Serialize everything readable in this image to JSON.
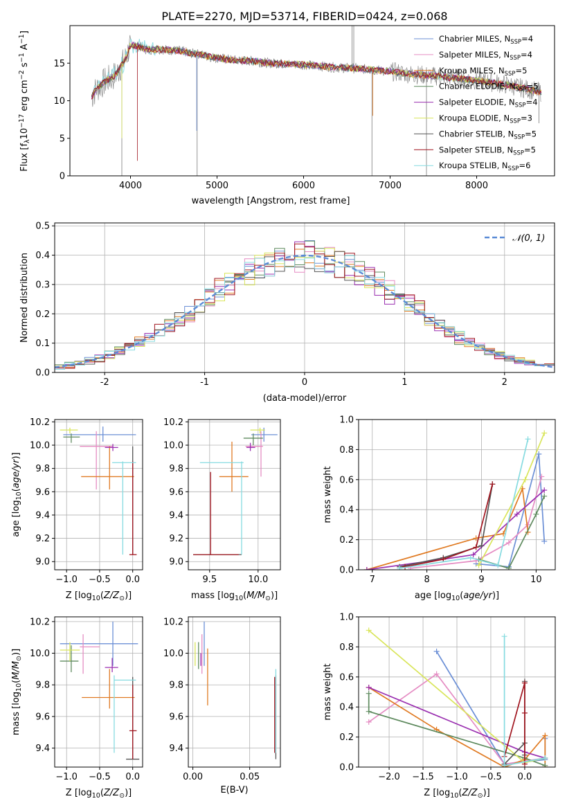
{
  "figure_title": "PLATE=2270, MJD=53714, FIBERID=0424, z=0.068",
  "series_colors": [
    "#6b8fd6",
    "#e58cc3",
    "#e07a22",
    "#5e8a5e",
    "#9a2fb0",
    "#d9e55a",
    "#555555",
    "#a0141e",
    "#86dbe0"
  ],
  "chart_data": [
    {
      "id": "spectrum",
      "type": "line",
      "title": "PLATE=2270, MJD=53714, FIBERID=0424, z=0.068",
      "xlabel": "wavelength [Angstrom, rest frame]",
      "ylabel": "Flux [f$_\\lambda$10$^{-17}$ erg cm$^{-2}$ s$^{-1}$ A$^{-1}$]",
      "ylabel_display": "Flux [fλ10⁻¹⁷ erg cm⁻² s⁻¹ A⁻¹]",
      "xlim": [
        3300,
        8900
      ],
      "ylim": [
        0,
        20
      ],
      "xticks": [
        4000,
        5000,
        6000,
        7000,
        8000
      ],
      "yticks": [
        0,
        5,
        10,
        15
      ],
      "grid": false,
      "legend_position": "top-right",
      "data_wavelength": [
        3550,
        3600,
        3700,
        3800,
        3850,
        3900,
        3950,
        4000,
        4100,
        4200,
        4300,
        4400,
        4500,
        4600,
        4700,
        4800,
        4900,
        5000,
        5200,
        5400,
        5600,
        5800,
        6000,
        6200,
        6400,
        6600,
        6800,
        7000,
        7200,
        7400,
        7600,
        7800,
        8000,
        8200,
        8400,
        8600,
        8800
      ],
      "data_flux": [
        10.5,
        11.5,
        12.5,
        13.2,
        13.8,
        14.8,
        15.8,
        17.5,
        17.2,
        16.8,
        16.9,
        16.8,
        16.7,
        16.6,
        16.3,
        16.2,
        15.9,
        15.7,
        15.4,
        15.3,
        15.0,
        14.9,
        14.8,
        14.6,
        14.4,
        14.3,
        14.1,
        13.9,
        13.6,
        13.4,
        13.2,
        13.0,
        12.7,
        12.4,
        12.0,
        11.5,
        11.0
      ],
      "series": [
        {
          "name": "Chabrier MILES, N$_{SSP}$=4",
          "display": [
            "Chabrier MILES, N",
            "SSP",
            "=4"
          ]
        },
        {
          "name": "Salpeter MILES, N$_{SSP}$=4",
          "display": [
            "Salpeter MILES, N",
            "SSP",
            "=4"
          ]
        },
        {
          "name": "Kroupa MILES, N$_{SSP}$=5",
          "display": [
            "Kroupa MILES, N",
            "SSP",
            "=5"
          ]
        },
        {
          "name": "Chabrier ELODIE, N$_{SSP}$=5",
          "display": [
            "Chabrier ELODIE, N",
            "SSP",
            "=5"
          ]
        },
        {
          "name": "Salpeter ELODIE, N$_{SSP}$=4",
          "display": [
            "Salpeter ELODIE, N",
            "SSP",
            "=4"
          ]
        },
        {
          "name": "Kroupa ELODIE, N$_{SSP}$=3",
          "display": [
            "Kroupa ELODIE, N",
            "SSP",
            "=3"
          ]
        },
        {
          "name": "Chabrier STELIB, N$_{SSP}$=5",
          "display": [
            "Chabrier STELIB, N",
            "SSP",
            "=5"
          ]
        },
        {
          "name": "Salpeter STELIB, N$_{SSP}$=5",
          "display": [
            "Salpeter STELIB, N",
            "SSP",
            "=5"
          ]
        },
        {
          "name": "Kroupa STELIB, N$_{SSP}$=6",
          "display": [
            "Kroupa STELIB, N",
            "SSP",
            "=6"
          ]
        }
      ]
    },
    {
      "id": "residuals",
      "type": "histogram",
      "xlabel": "(data-model)/error",
      "ylabel": "Normed distribution",
      "xlim": [
        -2.5,
        2.5
      ],
      "ylim": [
        0,
        0.51
      ],
      "xticks": [
        -2,
        -1,
        0,
        1,
        2
      ],
      "yticks": [
        0.0,
        0.1,
        0.2,
        0.3,
        0.4,
        0.5
      ],
      "ytick_labels": [
        "0.0",
        "0.1",
        "0.2",
        "0.3",
        "0.4",
        "0.5"
      ],
      "grid": true,
      "legend_position": "top-right",
      "reference_curve": {
        "name": "$\\mathcal{N}(0,1)$",
        "display": "𝒩(0, 1)",
        "style": "dashed"
      },
      "bin_width": 0.1
    },
    {
      "id": "age-vs-Z",
      "type": "errorbar",
      "xlabel": "Z [log$_{10}$($Z/Z_\\odot$)]",
      "ylabel": "age  [log$_{10}$($age/yr$)]",
      "xlim": [
        -1.18,
        0.15
      ],
      "ylim": [
        8.93,
        10.22
      ],
      "xticks": [
        -1.0,
        -0.5,
        0.0
      ],
      "xtick_labels": [
        "−1.0",
        "−0.5",
        "0.0"
      ],
      "yticks": [
        9.0,
        9.2,
        9.4,
        9.6,
        9.8,
        10.0,
        10.2
      ],
      "ytick_labels": [
        "9.0",
        "9.2",
        "9.4",
        "9.6",
        "9.8",
        "10.0",
        "10.2"
      ],
      "grid": true,
      "points": [
        {
          "x": -0.45,
          "xlo": -1.05,
          "xhi": 0.05,
          "y": 10.09,
          "ylo": 10.03,
          "yhi": 10.16
        },
        {
          "x": -0.55,
          "xlo": -0.8,
          "xhi": -0.3,
          "y": 9.99,
          "ylo": 9.62,
          "yhi": 10.12
        },
        {
          "x": -0.35,
          "xlo": -0.78,
          "xhi": 0.02,
          "y": 9.73,
          "ylo": 9.62,
          "yhi": 9.99
        },
        {
          "x": -0.93,
          "xlo": -1.05,
          "xhi": -0.8,
          "y": 10.07,
          "ylo": 10.02,
          "yhi": 10.1
        },
        {
          "x": -0.3,
          "xlo": -0.42,
          "xhi": -0.22,
          "y": 9.98,
          "ylo": 9.95,
          "yhi": 10.01
        },
        {
          "x": -0.95,
          "xlo": -1.1,
          "xhi": -0.83,
          "y": 10.13,
          "ylo": 10.1,
          "yhi": 10.15
        },
        {
          "x": 0.0,
          "xlo": 0.0,
          "xhi": 0.0,
          "y": 9.06,
          "ylo": 9.06,
          "yhi": 9.99
        },
        {
          "x": 0.0,
          "xlo": -0.05,
          "xhi": 0.06,
          "y": 9.06,
          "ylo": 9.06,
          "yhi": 9.86
        },
        {
          "x": -0.15,
          "xlo": -0.31,
          "xhi": 0.05,
          "y": 9.85,
          "ylo": 9.06,
          "yhi": 9.86
        }
      ]
    },
    {
      "id": "age-vs-mass",
      "type": "errorbar",
      "xlabel": "mass [log$_{10}$($M/M_\\odot$)]",
      "ylabel": "",
      "xlim": [
        9.28,
        10.23
      ],
      "ylim": [
        8.93,
        10.22
      ],
      "xticks": [
        9.5,
        10.0
      ],
      "xtick_labels": [
        "9.5",
        "10.0"
      ],
      "yticks": [
        9.0,
        9.2,
        9.4,
        9.6,
        9.8,
        10.0,
        10.2
      ],
      "ytick_labels": [
        "9.0",
        "9.2",
        "9.4",
        "9.6",
        "9.8",
        "10.0",
        "10.2"
      ],
      "grid": true,
      "points": [
        {
          "x": 10.06,
          "xlo": 9.93,
          "xhi": 10.2,
          "y": 10.09,
          "ylo": 10.03,
          "yhi": 10.15
        },
        {
          "x": 10.03,
          "xlo": 9.87,
          "xhi": 10.05,
          "y": 9.99,
          "ylo": 9.73,
          "yhi": 10.12
        },
        {
          "x": 9.73,
          "xlo": 9.6,
          "xhi": 9.9,
          "y": 9.73,
          "ylo": 9.6,
          "yhi": 10.03
        },
        {
          "x": 9.95,
          "xlo": 9.85,
          "xhi": 10.05,
          "y": 10.06,
          "ylo": 10.0,
          "yhi": 10.1
        },
        {
          "x": 9.92,
          "xlo": 9.88,
          "xhi": 9.97,
          "y": 9.98,
          "ylo": 9.95,
          "yhi": 10.02
        },
        {
          "x": 10.02,
          "xlo": 9.92,
          "xhi": 10.07,
          "y": 10.13,
          "ylo": 10.1,
          "yhi": 10.15
        },
        {
          "x": 9.33,
          "xlo": 9.33,
          "xhi": 9.83,
          "y": 9.06,
          "ylo": 9.06,
          "yhi": 9.06
        },
        {
          "x": 9.51,
          "xlo": 9.33,
          "xhi": 9.8,
          "y": 9.06,
          "ylo": 9.06,
          "yhi": 9.77
        },
        {
          "x": 9.83,
          "xlo": 9.4,
          "xhi": 9.85,
          "y": 9.85,
          "ylo": 9.06,
          "yhi": 9.86
        }
      ]
    },
    {
      "id": "weight-vs-age",
      "type": "line",
      "xlabel": "age  [log$_{10}$($age/yr$)]",
      "ylabel": "mass weight",
      "xlim": [
        6.75,
        10.35
      ],
      "ylim": [
        0,
        1.0
      ],
      "xticks": [
        7,
        8,
        9,
        10
      ],
      "yticks": [
        0.0,
        0.2,
        0.4,
        0.6,
        0.8,
        1.0
      ],
      "ytick_labels": [
        "0.0",
        "0.2",
        "0.4",
        "0.6",
        "0.8",
        "1.0"
      ],
      "grid": true,
      "series": [
        {
          "x": [
            8.9,
            9.5,
            10.05,
            10.15
          ],
          "y": [
            0.04,
            0.02,
            0.77,
            0.19
          ]
        },
        {
          "x": [
            7.7,
            8.9,
            9.5,
            9.85,
            10.1
          ],
          "y": [
            0.01,
            0.06,
            0.18,
            0.3,
            0.62
          ]
        },
        {
          "x": [
            6.9,
            8.9,
            9.4,
            9.75,
            9.85
          ],
          "y": [
            0.0,
            0.21,
            0.24,
            0.54,
            0.25
          ]
        },
        {
          "x": [
            8.95,
            9.5,
            10.0,
            10.15
          ],
          "y": [
            0.07,
            0.01,
            0.37,
            0.49
          ]
        },
        {
          "x": [
            6.9,
            8.3,
            8.85,
            9.65,
            10.15
          ],
          "y": [
            0.0,
            0.07,
            0.1,
            0.37,
            0.53
          ]
        },
        {
          "x": [
            8.95,
            9.8,
            10.15
          ],
          "y": [
            0.03,
            0.6,
            0.91
          ]
        },
        {
          "x": [
            7.5,
            8.3,
            9.0,
            9.2
          ],
          "y": [
            0.02,
            0.08,
            0.16,
            0.57
          ]
        },
        {
          "x": [
            7.6,
            8.3,
            8.9,
            9.2
          ],
          "y": [
            0.02,
            0.07,
            0.15,
            0.57
          ]
        },
        {
          "x": [
            7.5,
            8.8,
            9.3,
            9.85
          ],
          "y": [
            0.01,
            0.08,
            0.03,
            0.87
          ]
        }
      ]
    },
    {
      "id": "mass-vs-Z",
      "type": "errorbar",
      "xlabel": "Z [log$_{10}$($Z/Z_\\odot$)]",
      "ylabel": "mass [log$_{10}$($M/M_\\odot$)]",
      "xlim": [
        -1.18,
        0.15
      ],
      "ylim": [
        9.28,
        10.23
      ],
      "xticks": [
        -1.0,
        -0.5,
        0.0
      ],
      "xtick_labels": [
        "−1.0",
        "−0.5",
        "0.0"
      ],
      "yticks": [
        9.4,
        9.6,
        9.8,
        10.0,
        10.2
      ],
      "ytick_labels": [
        "9.4",
        "9.6",
        "9.8",
        "10.0",
        "10.2"
      ],
      "grid": true,
      "points": [
        {
          "x": -0.3,
          "xlo": -1.1,
          "xhi": 0.08,
          "y": 10.06,
          "ylo": 9.92,
          "yhi": 10.2
        },
        {
          "x": -0.75,
          "xlo": -0.8,
          "xhi": -0.5,
          "y": 10.04,
          "ylo": 9.87,
          "yhi": 10.12
        },
        {
          "x": -0.35,
          "xlo": -0.77,
          "xhi": 0.03,
          "y": 9.72,
          "ylo": 9.65,
          "yhi": 9.9
        },
        {
          "x": -0.93,
          "xlo": -1.1,
          "xhi": -0.82,
          "y": 9.95,
          "ylo": 9.88,
          "yhi": 10.05
        },
        {
          "x": -0.31,
          "xlo": -0.42,
          "xhi": -0.22,
          "y": 9.91,
          "ylo": 9.88,
          "yhi": 9.97
        },
        {
          "x": -0.95,
          "xlo": -1.1,
          "xhi": -0.8,
          "y": 10.02,
          "ylo": 9.95,
          "yhi": 10.07
        },
        {
          "x": 0.0,
          "xlo": -0.1,
          "xhi": 0.1,
          "y": 9.33,
          "ylo": 9.33,
          "yhi": 9.85
        },
        {
          "x": 0.0,
          "xlo": -0.05,
          "xhi": 0.06,
          "y": 9.51,
          "ylo": 9.33,
          "yhi": 9.8
        },
        {
          "x": -0.28,
          "xlo": -0.28,
          "xhi": 0.05,
          "y": 9.83,
          "ylo": 9.37,
          "yhi": 9.86
        }
      ]
    },
    {
      "id": "mass-vs-EBV",
      "type": "errorbar",
      "xlabel": "E(B-V)",
      "ylabel": "",
      "xlim": [
        -0.004,
        0.077
      ],
      "ylim": [
        9.28,
        10.23
      ],
      "xticks": [
        0.0,
        0.05
      ],
      "xtick_labels": [
        "0.00",
        "0.05"
      ],
      "yticks": [
        9.4,
        9.6,
        9.8,
        10.0,
        10.2
      ],
      "ytick_labels": [
        "9.4",
        "9.6",
        "9.8",
        "10.0",
        "10.2"
      ],
      "grid": true,
      "points": [
        {
          "x": 0.01,
          "xlo": 0.01,
          "xhi": 0.01,
          "y": 10.06,
          "ylo": 9.92,
          "yhi": 10.2
        },
        {
          "x": 0.008,
          "xlo": 0.008,
          "xhi": 0.008,
          "y": 10.04,
          "ylo": 9.87,
          "yhi": 10.12
        },
        {
          "x": 0.013,
          "xlo": 0.013,
          "xhi": 0.013,
          "y": 9.85,
          "ylo": 9.67,
          "yhi": 10.03
        },
        {
          "x": 0.005,
          "xlo": 0.005,
          "xhi": 0.005,
          "y": 9.98,
          "ylo": 9.9,
          "yhi": 10.07
        },
        {
          "x": 0.007,
          "xlo": 0.007,
          "xhi": 0.007,
          "y": 9.96,
          "ylo": 9.92,
          "yhi": 10.0
        },
        {
          "x": 0.002,
          "xlo": 0.002,
          "xhi": 0.002,
          "y": 10.0,
          "ylo": 9.92,
          "yhi": 10.07
        },
        {
          "x": 0.073,
          "xlo": 0.073,
          "xhi": 0.073,
          "y": 9.6,
          "ylo": 9.33,
          "yhi": 9.86
        },
        {
          "x": 0.072,
          "xlo": 0.072,
          "xhi": 0.072,
          "y": 9.6,
          "ylo": 9.37,
          "yhi": 9.85
        },
        {
          "x": 0.073,
          "xlo": 0.073,
          "xhi": 0.073,
          "y": 9.65,
          "ylo": 9.37,
          "yhi": 9.9
        }
      ]
    },
    {
      "id": "weight-vs-Z",
      "type": "line",
      "xlabel": "Z [log$_{10}$($Z/Z_\\odot$)]",
      "ylabel": "mass weight",
      "xlim": [
        -2.45,
        0.45
      ],
      "ylim": [
        0,
        1.0
      ],
      "xticks": [
        -2.0,
        -1.5,
        -1.0,
        -0.5,
        0.0
      ],
      "xtick_labels": [
        "−2.0",
        "−1.5",
        "−1.0",
        "−0.5",
        "0.0"
      ],
      "yticks": [
        0.0,
        0.2,
        0.4,
        0.6,
        0.8,
        1.0
      ],
      "ytick_labels": [
        "0.0",
        "0.2",
        "0.4",
        "0.6",
        "0.8",
        "1.0"
      ],
      "grid": true,
      "series": [
        {
          "x": [
            -1.3,
            -0.3,
            0.3,
            0.3
          ],
          "y": [
            0.77,
            0.02,
            0.05,
            0.19
          ]
        },
        {
          "x": [
            -2.3,
            -1.3,
            -0.3,
            0.3
          ],
          "y": [
            0.3,
            0.62,
            0.02,
            0.06
          ]
        },
        {
          "x": [
            -2.3,
            -1.3,
            -0.3,
            0.0,
            0.3,
            0.3
          ],
          "y": [
            0.53,
            0.25,
            0.0,
            0.05,
            0.21,
            0.0
          ]
        },
        {
          "x": [
            -2.3,
            -2.3,
            0.0,
            0.3
          ],
          "y": [
            0.49,
            0.37,
            0.06,
            0.01
          ]
        },
        {
          "x": [
            -2.3,
            0.0,
            0.3
          ],
          "y": [
            0.53,
            0.1,
            0.06
          ]
        },
        {
          "x": [
            -2.3,
            0.0,
            0.3
          ],
          "y": [
            0.91,
            0.03,
            0.06
          ]
        },
        {
          "x": [
            0.0,
            0.0,
            0.0,
            -0.3
          ],
          "y": [
            0.57,
            0.08,
            0.16,
            0.02
          ]
        },
        {
          "x": [
            -0.3,
            0.0,
            0.0,
            0.0
          ],
          "y": [
            0.07,
            0.56,
            0.36,
            0.02
          ]
        },
        {
          "x": [
            -0.3,
            -0.3,
            0.3
          ],
          "y": [
            0.87,
            0.01,
            0.06
          ]
        }
      ]
    }
  ]
}
